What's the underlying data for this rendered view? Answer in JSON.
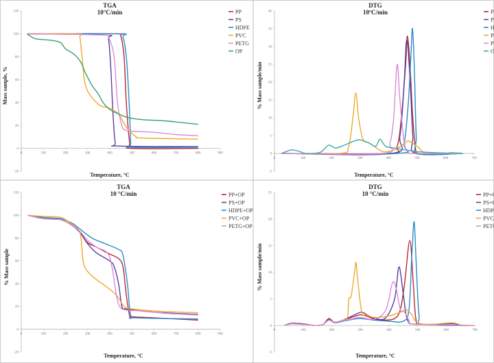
{
  "colors": {
    "red": "#b5263a",
    "purple": "#5b3d9a",
    "blue": "#2a8bc8",
    "orange": "#f0a82a",
    "pink": "#d98ad8",
    "green": "#3a9e6e"
  },
  "chart_data": [
    {
      "type": "line",
      "title": "TGA",
      "subtitle": "10°C/min",
      "xlabel": "Temperature, °C",
      "ylabel": "Mass sample, %",
      "xlim": [
        0,
        900
      ],
      "ylim": [
        -20,
        120
      ],
      "xticks": [
        0,
        100,
        200,
        300,
        400,
        500,
        600,
        700,
        800,
        900
      ],
      "yticks": [
        -20,
        0,
        20,
        40,
        60,
        80,
        100,
        120
      ],
      "legend": "right",
      "grid": false,
      "series": [
        {
          "name": "PP",
          "color": "#b5263a",
          "x": [
            30,
            430,
            450,
            465,
            475,
            490,
            500,
            800
          ],
          "y": [
            100,
            100,
            98,
            80,
            40,
            5,
            0,
            0
          ]
        },
        {
          "name": "PS",
          "color": "#5b3d9a",
          "x": [
            30,
            380,
            395,
            405,
            415,
            425,
            440,
            800
          ],
          "y": [
            100,
            99,
            95,
            70,
            30,
            5,
            2,
            1.5
          ]
        },
        {
          "name": "HDPE",
          "color": "#2a8bc8",
          "x": [
            30,
            440,
            460,
            475,
            488,
            495,
            500,
            800
          ],
          "y": [
            100,
            100,
            97,
            80,
            40,
            5,
            1,
            1
          ]
        },
        {
          "name": "PVC",
          "color": "#f0a82a",
          "x": [
            30,
            255,
            265,
            275,
            285,
            300,
            330,
            360,
            400,
            440,
            470,
            490,
            520,
            550,
            800
          ],
          "y": [
            100,
            100,
            97,
            80,
            60,
            50,
            42,
            37,
            35,
            30,
            20,
            15,
            10,
            9,
            8
          ]
        },
        {
          "name": "PETG",
          "color": "#d98ad8",
          "x": [
            30,
            370,
            395,
            420,
            435,
            455,
            470,
            500,
            600,
            700,
            800
          ],
          "y": [
            100,
            99,
            97,
            80,
            40,
            20,
            16,
            15,
            14,
            12,
            11
          ]
        },
        {
          "name": "OP",
          "color": "#3a9e6e",
          "x": [
            25,
            60,
            100,
            150,
            180,
            200,
            240,
            270,
            290,
            320,
            350,
            370,
            400,
            440,
            480,
            550,
            650,
            800
          ],
          "y": [
            100,
            96,
            95,
            94,
            92,
            87,
            82,
            75,
            66,
            55,
            47,
            40,
            34,
            30,
            27,
            25,
            24,
            21
          ]
        }
      ]
    },
    {
      "type": "line",
      "title": "DTG",
      "subtitle": "10ºC/min",
      "xlabel": "Temperature, °C",
      "ylabel": "% Mass sample/min",
      "xlim": [
        0,
        700
      ],
      "ylim": [
        -5,
        40
      ],
      "xticks": [
        0,
        100,
        200,
        300,
        400,
        500,
        600,
        700
      ],
      "yticks": [
        -5,
        0,
        5,
        10,
        15,
        20,
        25,
        30,
        35,
        40
      ],
      "legend": "right",
      "grid": false,
      "series": [
        {
          "name": "PP",
          "color": "#b5263a",
          "x": [
            25,
            400,
            430,
            445,
            460,
            466,
            475,
            485,
            495,
            500,
            660
          ],
          "y": [
            0,
            0,
            2,
            10,
            25,
            33,
            25,
            10,
            1,
            0,
            0
          ]
        },
        {
          "name": "PS",
          "color": "#5b3d9a",
          "x": [
            25,
            410,
            440,
            455,
            464,
            476,
            485,
            495,
            660
          ],
          "y": [
            0,
            0,
            5,
            20,
            32,
            20,
            5,
            0,
            0
          ]
        },
        {
          "name": "HDPE",
          "color": "#2a8bc8",
          "x": [
            25,
            430,
            455,
            470,
            480,
            484,
            490,
            497,
            505,
            660
          ],
          "y": [
            0,
            0,
            3,
            15,
            30,
            35,
            25,
            5,
            0,
            0
          ]
        },
        {
          "name": "PVC",
          "color": "#f0a82a",
          "x": [
            25,
            230,
            260,
            275,
            285,
            295,
            310,
            330,
            350,
            380,
            420,
            460,
            470,
            500,
            520,
            540,
            660
          ],
          "y": [
            0,
            0,
            2,
            10,
            17,
            10,
            4,
            3,
            2,
            0.5,
            1,
            3,
            3.5,
            2,
            0.5,
            0,
            0
          ]
        },
        {
          "name": "PETG",
          "color": "#d98ad8",
          "x": [
            25,
            380,
            405,
            418,
            430,
            440,
            455,
            470,
            480,
            660
          ],
          "y": [
            0,
            0,
            3,
            10,
            25,
            15,
            3,
            0.5,
            0,
            0
          ]
        },
        {
          "name": "OP",
          "color": "#3aa8a0",
          "x": [
            25,
            50,
            65,
            90,
            110,
            160,
            190,
            215,
            250,
            280,
            300,
            330,
            355,
            370,
            390,
            420,
            460,
            500,
            600,
            620,
            660
          ],
          "y": [
            0,
            0.8,
            1,
            0.5,
            0,
            0.3,
            2.3,
            1.5,
            2.5,
            3.5,
            3.8,
            3,
            2,
            4,
            2,
            1.5,
            1,
            0.5,
            0.1,
            0.2,
            0
          ]
        }
      ]
    },
    {
      "type": "line",
      "title": "TGA",
      "subtitle": "10 °C/min",
      "xlabel": "Temperature,  °C",
      "ylabel": "% Mass sample",
      "xlim": [
        0,
        900
      ],
      "ylim": [
        -20,
        120
      ],
      "xticks": [
        0,
        100,
        200,
        300,
        400,
        500,
        600,
        700,
        800,
        900
      ],
      "yticks": [
        -20,
        0,
        20,
        40,
        60,
        80,
        100,
        120
      ],
      "legend": "right",
      "grid": false,
      "series": [
        {
          "name": "PP+OP",
          "color": "#b5263a",
          "x": [
            30,
            100,
            180,
            240,
            270,
            300,
            340,
            400,
            440,
            460,
            475,
            490,
            500,
            600,
            800
          ],
          "y": [
            100,
            98,
            96,
            90,
            84,
            76,
            72,
            66,
            62,
            55,
            30,
            12,
            11,
            10,
            8
          ]
        },
        {
          "name": "PS+OP",
          "color": "#5b3d9a",
          "x": [
            30,
            100,
            180,
            230,
            265,
            300,
            340,
            400,
            420,
            440,
            455,
            470,
            500,
            600,
            800
          ],
          "y": [
            100,
            97,
            96,
            91,
            85,
            75,
            67,
            60,
            55,
            40,
            20,
            18,
            17,
            15,
            13
          ]
        },
        {
          "name": "HDPE+OP",
          "color": "#2a8bc8",
          "x": [
            30,
            100,
            180,
            230,
            265,
            320,
            380,
            440,
            460,
            480,
            495,
            520,
            800
          ],
          "y": [
            100,
            98,
            97,
            93,
            88,
            80,
            75,
            70,
            65,
            40,
            12,
            10,
            9
          ]
        },
        {
          "name": "PVC+OP",
          "color": "#f0a82a",
          "x": [
            30,
            100,
            180,
            230,
            260,
            270,
            280,
            295,
            330,
            380,
            430,
            465,
            500,
            600,
            800
          ],
          "y": [
            100,
            99,
            98,
            92,
            87,
            80,
            60,
            52,
            45,
            38,
            30,
            20,
            18,
            16,
            14.5
          ]
        },
        {
          "name": "PETG+OP",
          "color": "#d98ad8",
          "x": [
            30,
            100,
            180,
            230,
            265,
            300,
            340,
            390,
            410,
            430,
            445,
            470,
            550,
            650,
            800
          ],
          "y": [
            100,
            97,
            96,
            91,
            86,
            78,
            72,
            67,
            55,
            30,
            20,
            17,
            16,
            14,
            12.5
          ]
        }
      ]
    },
    {
      "type": "line",
      "title": "DTG",
      "subtitle": "10 °C/min",
      "xlabel": "Temperature,  °C",
      "ylabel": "% Mass sample/min",
      "xlim": [
        0,
        700
      ],
      "ylim": [
        -5,
        25
      ],
      "xticks": [
        0,
        100,
        200,
        300,
        400,
        500,
        600,
        700
      ],
      "yticks": [
        -5,
        0,
        5,
        10,
        15,
        20,
        25
      ],
      "legend": "right",
      "grid": false,
      "series": [
        {
          "name": "PP+OP",
          "color": "#b5263a",
          "x": [
            35,
            60,
            100,
            140,
            170,
            190,
            210,
            240,
            280,
            300,
            320,
            350,
            380,
            420,
            440,
            455,
            473,
            485,
            495,
            520,
            700
          ],
          "y": [
            0,
            0.4,
            0.3,
            0,
            0.2,
            1.3,
            0.6,
            1,
            1.7,
            2,
            1.8,
            1.2,
            1,
            1.3,
            3,
            8,
            16,
            8,
            1,
            0.2,
            0
          ]
        },
        {
          "name": "PS+OP",
          "color": "#5b3d9a",
          "x": [
            35,
            60,
            100,
            140,
            170,
            190,
            210,
            240,
            280,
            305,
            330,
            360,
            390,
            420,
            435,
            450,
            465,
            500,
            600,
            630,
            650,
            700
          ],
          "y": [
            0,
            0.4,
            0.3,
            0,
            0.2,
            1.2,
            0.6,
            1,
            2,
            2.5,
            1.8,
            1.2,
            1.5,
            5,
            11,
            6,
            1,
            0.2,
            0.3,
            0.3,
            0,
            0
          ]
        },
        {
          "name": "HDPE+OP",
          "color": "#2a8bc8",
          "x": [
            35,
            60,
            100,
            140,
            170,
            190,
            210,
            240,
            270,
            300,
            350,
            400,
            450,
            470,
            480,
            488,
            495,
            505,
            520,
            700
          ],
          "y": [
            0,
            0.3,
            0.2,
            0,
            0.2,
            1,
            0.5,
            0.8,
            1.1,
            1.3,
            1,
            0.8,
            0.8,
            3,
            13,
            19.5,
            12,
            2,
            0.2,
            0
          ]
        },
        {
          "name": "PVC+OP",
          "color": "#f0a82a",
          "x": [
            35,
            60,
            100,
            140,
            170,
            190,
            210,
            240,
            255,
            260,
            268,
            280,
            285,
            292,
            305,
            320,
            350,
            400,
            440,
            460,
            480,
            500,
            550,
            620,
            660,
            700
          ],
          "y": [
            0,
            0.3,
            0.2,
            0,
            0.2,
            1,
            0.6,
            1,
            1.5,
            5,
            5.5,
            10,
            11.8,
            8,
            2.5,
            2,
            1.5,
            1.8,
            2.5,
            3,
            2,
            0.5,
            0.2,
            0.5,
            0,
            0
          ]
        },
        {
          "name": "PETG+OP",
          "color": "#d98ad8",
          "x": [
            35,
            60,
            100,
            140,
            170,
            190,
            210,
            240,
            270,
            300,
            350,
            390,
            412,
            425,
            440,
            455,
            470,
            490,
            700
          ],
          "y": [
            0,
            0.3,
            0.2,
            0,
            0.2,
            1,
            0.6,
            0.9,
            1.2,
            1.5,
            1.2,
            3,
            8,
            7,
            3,
            2.5,
            1,
            0.2,
            0
          ]
        }
      ]
    }
  ]
}
